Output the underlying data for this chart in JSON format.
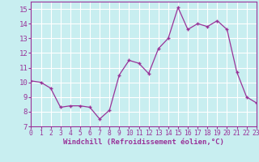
{
  "x": [
    0,
    1,
    2,
    3,
    4,
    5,
    6,
    7,
    8,
    9,
    10,
    11,
    12,
    13,
    14,
    15,
    16,
    17,
    18,
    19,
    20,
    21,
    22,
    23
  ],
  "y": [
    10.1,
    10.0,
    9.6,
    8.3,
    8.4,
    8.4,
    8.3,
    7.5,
    8.1,
    10.5,
    11.5,
    11.3,
    10.6,
    12.3,
    13.0,
    15.1,
    13.6,
    14.0,
    13.8,
    14.2,
    13.6,
    10.7,
    9.0,
    8.6
  ],
  "xlim": [
    0,
    23
  ],
  "ylim": [
    7,
    15.5
  ],
  "yticks": [
    7,
    8,
    9,
    10,
    11,
    12,
    13,
    14,
    15
  ],
  "xticks": [
    0,
    1,
    2,
    3,
    4,
    5,
    6,
    7,
    8,
    9,
    10,
    11,
    12,
    13,
    14,
    15,
    16,
    17,
    18,
    19,
    20,
    21,
    22,
    23
  ],
  "xlabel": "Windchill (Refroidissement éolien,°C)",
  "line_color": "#993399",
  "marker": "+",
  "bg_color": "#c8eef0",
  "grid_color": "#ffffff",
  "axis_color": "#993399",
  "label_color": "#993399",
  "tick_color": "#993399",
  "xlabel_fontsize": 6.5,
  "tick_fontsize": 6.5,
  "linewidth": 0.9,
  "markersize": 3.5,
  "markeredgewidth": 1.0
}
